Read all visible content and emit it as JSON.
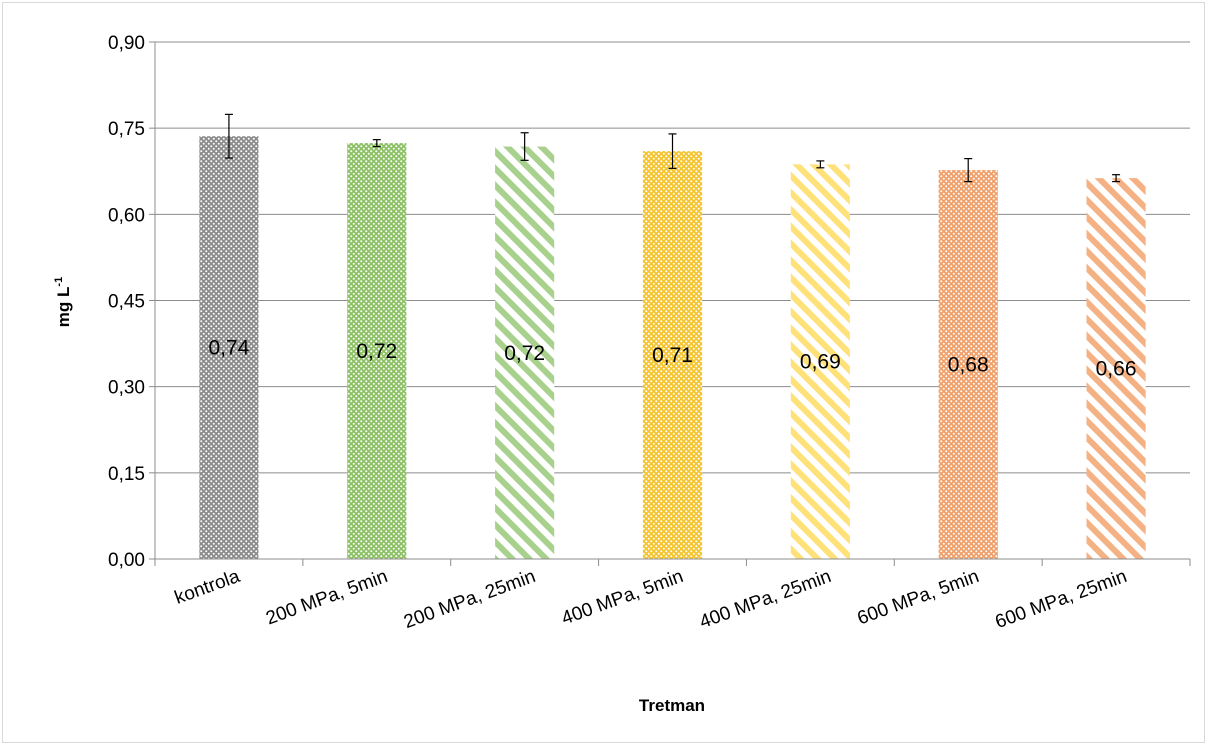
{
  "chart_data": {
    "type": "bar",
    "title": "",
    "xlabel": "Tretman",
    "ylabel": "mg L",
    "ylabel_superscript": "-1",
    "ylim": [
      0,
      0.9
    ],
    "yticks": [
      0.0,
      0.15,
      0.3,
      0.45,
      0.6,
      0.75,
      0.9
    ],
    "ytick_labels": [
      "0,00",
      "0,15",
      "0,30",
      "0,45",
      "0,60",
      "0,75",
      "0,90"
    ],
    "grid": "horizontal",
    "legend": "none",
    "categories": [
      "kontrola",
      "200 MPa, 5min",
      "200 MPa, 25min",
      "400 MPa, 5min",
      "400 MPa, 25min",
      "600 MPa, 5min",
      "600 MPa, 25min"
    ],
    "values": [
      0.736,
      0.724,
      0.718,
      0.71,
      0.687,
      0.677,
      0.663
    ],
    "value_labels": [
      "0,74",
      "0,72",
      "0,72",
      "0,71",
      "0,69",
      "0,68",
      "0,66"
    ],
    "errors": [
      0.038,
      0.006,
      0.024,
      0.03,
      0.006,
      0.02,
      0.006
    ],
    "colors": [
      "#8c8c8c",
      "#8dc165",
      "#a9d18e",
      "#f5c530",
      "#ffe17a",
      "#f0a06a",
      "#f4b183"
    ],
    "patterns": [
      "dots",
      "dots",
      "diagonal",
      "dots",
      "diagonal",
      "dots",
      "diagonal"
    ]
  }
}
